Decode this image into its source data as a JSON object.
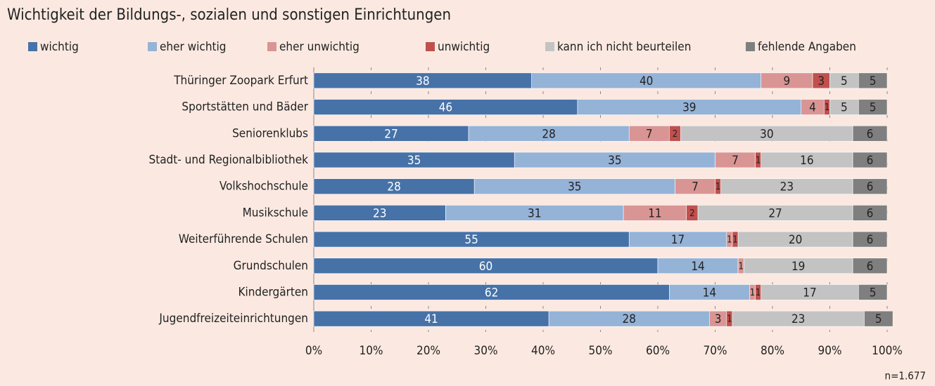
{
  "chart_data": {
    "type": "stacked-bar-horizontal",
    "title": "Wichtigkeit der Bildungs-, sozialen und sonstigen Einrichtungen",
    "note": "n=1.677",
    "categories": [
      "Thüringer Zoopark Erfurt",
      "Sportstätten und Bäder",
      "Seniorenklubs",
      "Stadt- und Regionalbibliothek",
      "Volkshochschule",
      "Musikschule",
      "Weiterführende Schulen",
      "Grundschulen",
      "Kindergärten",
      "Jugendfreizeiteinrichtungen"
    ],
    "series": [
      {
        "name": "wichtig",
        "color": "#4672a8",
        "values": [
          38,
          46,
          27,
          35,
          28,
          23,
          55,
          60,
          62,
          41
        ]
      },
      {
        "name": "eher wichtig",
        "color": "#95b3d7",
        "values": [
          40,
          39,
          28,
          35,
          35,
          31,
          17,
          14,
          14,
          28
        ]
      },
      {
        "name": "eher unwichtig",
        "color": "#d99594",
        "values": [
          9,
          4,
          7,
          7,
          7,
          11,
          1,
          1,
          1,
          3
        ]
      },
      {
        "name": "unwichtig",
        "color": "#c0504d",
        "values": [
          3,
          1,
          2,
          1,
          1,
          2,
          1,
          0,
          1,
          1
        ]
      },
      {
        "name": "kann ich nicht beurteilen",
        "color": "#c3c3c3",
        "values": [
          5,
          5,
          30,
          16,
          23,
          27,
          20,
          19,
          17,
          23
        ]
      },
      {
        "name": "fehlende Angaben",
        "color": "#7f7f7f",
        "values": [
          5,
          5,
          6,
          6,
          6,
          6,
          6,
          6,
          5,
          5
        ]
      }
    ],
    "xlim": [
      0,
      100
    ],
    "xticks": [
      {
        "value": 0,
        "label": "0%"
      },
      {
        "value": 10,
        "label": "10%"
      },
      {
        "value": 20,
        "label": "20%"
      },
      {
        "value": 30,
        "label": "30%"
      },
      {
        "value": 40,
        "label": "40%"
      },
      {
        "value": 50,
        "label": "50%"
      },
      {
        "value": 60,
        "label": "60%"
      },
      {
        "value": 70,
        "label": "70%"
      },
      {
        "value": 80,
        "label": "80%"
      },
      {
        "value": 90,
        "label": "90%"
      },
      {
        "value": 100,
        "label": "100%"
      }
    ],
    "grid": true
  }
}
